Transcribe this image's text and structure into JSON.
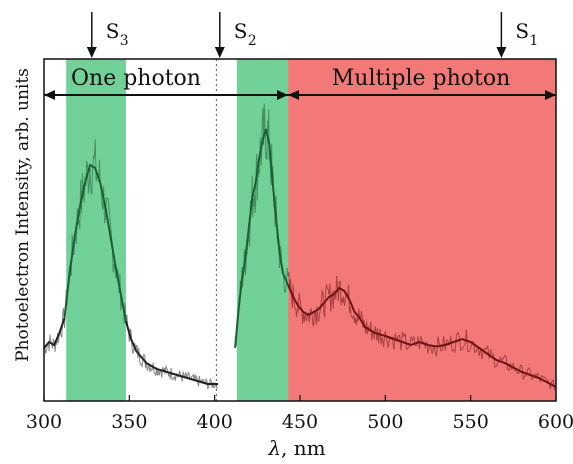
{
  "chart_data": {
    "type": "line",
    "xlabel_var": "λ",
    "xlabel_unit": ", nm",
    "ylabel": "Photoelectron Intensity, arb. units",
    "xlim": [
      300,
      600
    ],
    "xticks": [
      300,
      350,
      400,
      450,
      500,
      550,
      600
    ],
    "y_ticks_shown": false,
    "grid": false,
    "regions": [
      {
        "label": "One photon",
        "x_start": 300,
        "x_end": 443
      },
      {
        "label": "Multiple photon",
        "x_start": 443,
        "x_end": 600,
        "color": "#f26d6d"
      }
    ],
    "bands": [
      {
        "x_start": 313,
        "x_end": 348,
        "color": "#5ec98b"
      },
      {
        "x_start": 413,
        "x_end": 443,
        "color": "#5ec98b"
      }
    ],
    "markers": [
      {
        "label": "S",
        "sub": "3",
        "x": 328
      },
      {
        "label": "S",
        "sub": "2",
        "x": 403
      },
      {
        "label": "S",
        "sub": "1",
        "x": 568
      }
    ],
    "dashed_line_x": 401,
    "series": [
      {
        "color_dark": "#222222",
        "segment_colors": {
          "in_green": "#1f5e35",
          "in_red": "#6e1414",
          "outside": "#222222"
        },
        "x": [
          300,
          303,
          306,
          309,
          312,
          315,
          318,
          321,
          324,
          327,
          330,
          333,
          336,
          339,
          342,
          345,
          348,
          351,
          354,
          357,
          360,
          363,
          366,
          369,
          372,
          375,
          378,
          381,
          384,
          387,
          390,
          393,
          396,
          399,
          402,
          null,
          412,
          414,
          416,
          418,
          420,
          422,
          424,
          426,
          428,
          430,
          432,
          434,
          436,
          438,
          440,
          443,
          446,
          449,
          452,
          455,
          458,
          461,
          464,
          467,
          470,
          473,
          476,
          479,
          482,
          485,
          488,
          491,
          494,
          497,
          500,
          505,
          510,
          515,
          520,
          525,
          530,
          535,
          540,
          545,
          550,
          555,
          560,
          565,
          570,
          575,
          580,
          585,
          590,
          595,
          600
        ],
        "y": [
          0.15,
          0.17,
          0.16,
          0.2,
          0.25,
          0.4,
          0.52,
          0.62,
          0.7,
          0.76,
          0.75,
          0.7,
          0.62,
          0.52,
          0.42,
          0.33,
          0.24,
          0.18,
          0.14,
          0.12,
          0.1,
          0.09,
          0.08,
          0.075,
          0.07,
          0.065,
          0.06,
          0.055,
          0.05,
          0.045,
          0.04,
          0.035,
          0.03,
          0.03,
          0.03,
          null,
          0.15,
          0.28,
          0.38,
          0.45,
          0.55,
          0.65,
          0.7,
          0.78,
          0.84,
          0.88,
          0.83,
          0.7,
          0.58,
          0.47,
          0.4,
          0.36,
          0.32,
          0.29,
          0.27,
          0.26,
          0.27,
          0.28,
          0.3,
          0.32,
          0.33,
          0.35,
          0.34,
          0.31,
          0.27,
          0.25,
          0.22,
          0.21,
          0.2,
          0.195,
          0.19,
          0.18,
          0.17,
          0.16,
          0.17,
          0.16,
          0.155,
          0.16,
          0.17,
          0.18,
          0.17,
          0.15,
          0.13,
          0.11,
          0.1,
          0.085,
          0.07,
          0.06,
          0.05,
          0.035,
          0.02
        ]
      }
    ]
  }
}
